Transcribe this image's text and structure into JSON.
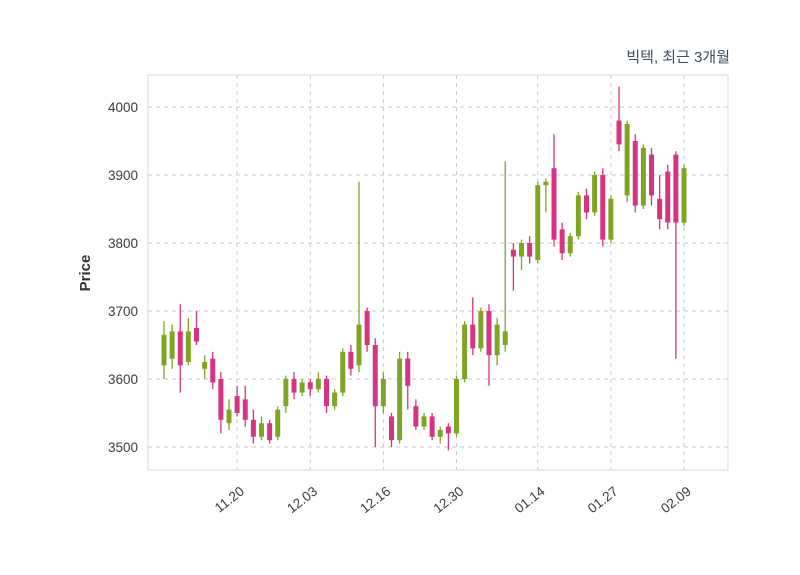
{
  "colors": {
    "up": "#7EA624",
    "down": "#D63480",
    "grid": "#C9C9C9",
    "axis_text": "#3C3C3C",
    "title_text": "#3E4A5F",
    "ylabel_text": "#333333",
    "plot_border": "#D9D9D9",
    "background": "#FFFFFF"
  },
  "chart_data": {
    "type": "candlestick",
    "title": "빅텍, 최근 3개월",
    "ylabel": "Price",
    "xlabel": "",
    "ylim": [
      3450,
      4050
    ],
    "yticks": [
      3500,
      3600,
      3700,
      3800,
      3900,
      4000
    ],
    "xticklabels": [
      "11.20",
      "12.03",
      "12.16",
      "12.30",
      "01.14",
      "01.27",
      "02.09"
    ],
    "grid": "dashed",
    "legend": "none",
    "dates": [
      "11.09",
      "11.10",
      "11.11",
      "11.12",
      "11.13",
      "11.16",
      "11.17",
      "11.18",
      "11.19",
      "11.20",
      "11.23",
      "11.24",
      "11.25",
      "11.26",
      "11.27",
      "11.30",
      "12.01",
      "12.02",
      "12.03",
      "12.04",
      "12.07",
      "12.08",
      "12.09",
      "12.10",
      "12.11",
      "12.14",
      "12.15",
      "12.16",
      "12.17",
      "12.18",
      "12.21",
      "12.22",
      "12.23",
      "12.24",
      "12.28",
      "12.29",
      "12.30",
      "12.31",
      "01.04",
      "01.05",
      "01.06",
      "01.07",
      "01.08",
      "01.11",
      "01.12",
      "01.13",
      "01.14",
      "01.15",
      "01.18",
      "01.19",
      "01.20",
      "01.21",
      "01.22",
      "01.25",
      "01.26",
      "01.27",
      "01.28",
      "01.29",
      "02.01",
      "02.02",
      "02.03",
      "02.04",
      "02.05",
      "02.08",
      "02.09"
    ],
    "open": [
      3620,
      3630,
      3670,
      3625,
      3675,
      3615,
      3630,
      3600,
      3535,
      3575,
      3570,
      3540,
      3515,
      3535,
      3515,
      3560,
      3600,
      3580,
      3595,
      3585,
      3600,
      3560,
      3580,
      3640,
      3620,
      3700,
      3650,
      3560,
      3545,
      3510,
      3630,
      3560,
      3530,
      3545,
      3515,
      3530,
      3520,
      3600,
      3680,
      3645,
      3700,
      3635,
      3650,
      3790,
      3780,
      3800,
      3775,
      3885,
      3910,
      3820,
      3785,
      3810,
      3870,
      3845,
      3900,
      3805,
      3980,
      3870,
      3950,
      3855,
      3930,
      3865,
      3905,
      3930,
      3830
    ],
    "high": [
      3685,
      3680,
      3710,
      3690,
      3700,
      3635,
      3640,
      3610,
      3570,
      3590,
      3590,
      3555,
      3545,
      3540,
      3560,
      3605,
      3610,
      3600,
      3600,
      3610,
      3605,
      3585,
      3645,
      3650,
      3890,
      3705,
      3660,
      3610,
      3550,
      3640,
      3640,
      3570,
      3550,
      3550,
      3530,
      3535,
      3605,
      3685,
      3720,
      3705,
      3710,
      3690,
      3920,
      3800,
      3805,
      3810,
      3890,
      3895,
      3960,
      3830,
      3815,
      3875,
      3880,
      3905,
      3910,
      3870,
      4030,
      3980,
      3960,
      3945,
      3940,
      3900,
      3915,
      3935,
      3915
    ],
    "low": [
      3600,
      3615,
      3580,
      3620,
      3650,
      3600,
      3585,
      3520,
      3525,
      3545,
      3530,
      3505,
      3510,
      3505,
      3510,
      3550,
      3570,
      3575,
      3575,
      3580,
      3550,
      3555,
      3575,
      3605,
      3610,
      3640,
      3500,
      3550,
      3500,
      3505,
      3555,
      3525,
      3525,
      3510,
      3505,
      3495,
      3515,
      3595,
      3635,
      3640,
      3590,
      3620,
      3640,
      3730,
      3760,
      3770,
      3770,
      3845,
      3795,
      3775,
      3780,
      3805,
      3835,
      3840,
      3795,
      3800,
      3935,
      3860,
      3845,
      3850,
      3855,
      3820,
      3820,
      3630,
      3825
    ],
    "close": [
      3665,
      3670,
      3620,
      3670,
      3655,
      3625,
      3595,
      3540,
      3555,
      3550,
      3540,
      3515,
      3535,
      3510,
      3555,
      3600,
      3580,
      3595,
      3585,
      3600,
      3560,
      3580,
      3640,
      3615,
      3680,
      3650,
      3560,
      3600,
      3510,
      3630,
      3590,
      3530,
      3545,
      3515,
      3525,
      3520,
      3600,
      3680,
      3645,
      3700,
      3635,
      3680,
      3670,
      3780,
      3800,
      3780,
      3885,
      3890,
      3805,
      3785,
      3810,
      3870,
      3845,
      3900,
      3805,
      3865,
      3945,
      3975,
      3855,
      3940,
      3870,
      3835,
      3830,
      3830,
      3910
    ]
  }
}
